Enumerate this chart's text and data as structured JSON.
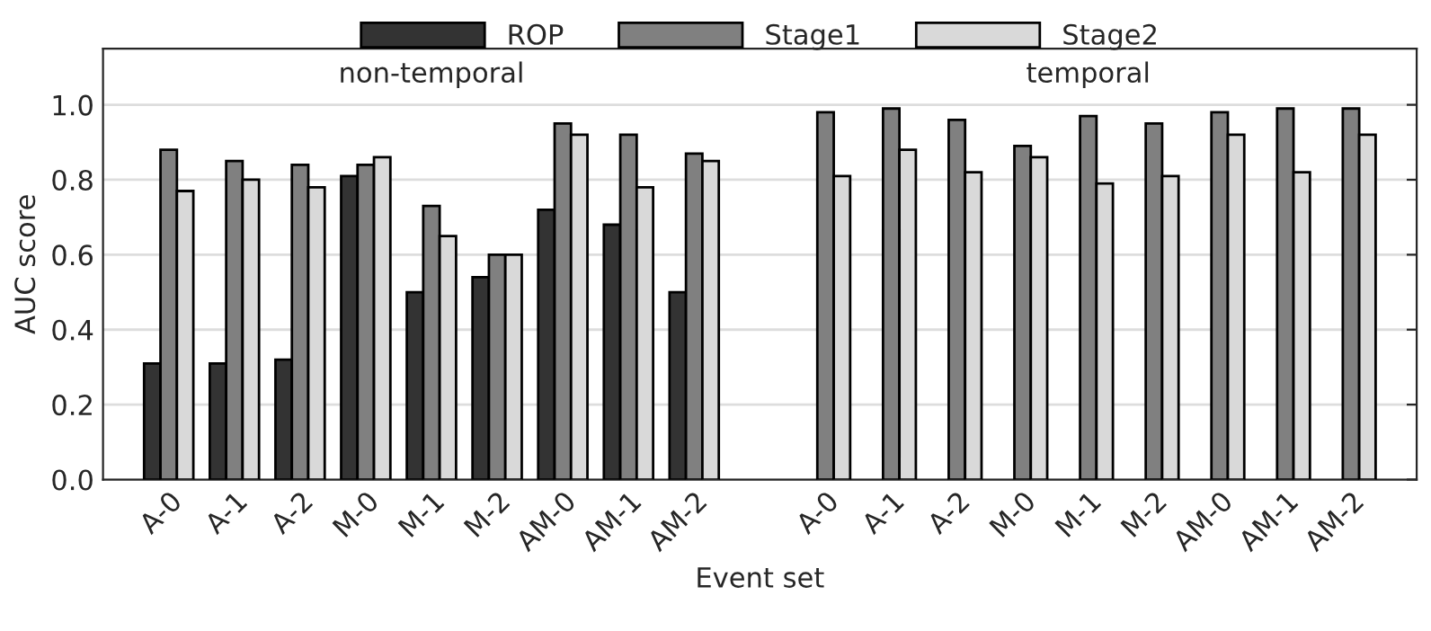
{
  "chart_data": {
    "type": "bar",
    "xlabel": "Event set",
    "ylabel": "AUC score",
    "categories": [
      "A-0",
      "A-1",
      "A-2",
      "M-0",
      "M-1",
      "M-2",
      "AM-0",
      "AM-1",
      "AM-2",
      null,
      "A-0",
      "A-1",
      "A-2",
      "M-0",
      "M-1",
      "M-2",
      "AM-0",
      "AM-1",
      "AM-2"
    ],
    "series": [
      {
        "name": "ROP",
        "color": "#333333",
        "values": [
          0.31,
          0.31,
          0.32,
          0.81,
          0.5,
          0.54,
          0.72,
          0.68,
          0.5,
          null,
          null,
          null,
          null,
          null,
          null,
          null,
          null,
          null,
          null
        ]
      },
      {
        "name": "Stage1",
        "color": "#808080",
        "values": [
          0.88,
          0.85,
          0.84,
          0.84,
          0.73,
          0.6,
          0.95,
          0.92,
          0.87,
          null,
          0.98,
          0.99,
          0.96,
          0.89,
          0.97,
          0.95,
          0.98,
          0.99,
          0.99
        ]
      },
      {
        "name": "Stage2",
        "color": "#d9d9d9",
        "values": [
          0.77,
          0.8,
          0.78,
          0.86,
          0.65,
          0.6,
          0.92,
          0.78,
          0.85,
          null,
          0.81,
          0.88,
          0.82,
          0.86,
          0.79,
          0.81,
          0.92,
          0.82,
          0.92
        ]
      }
    ],
    "annotations": [
      "non-temporal",
      "temporal"
    ],
    "ylim": [
      0,
      1.15
    ],
    "yticks": [
      {
        "value": 0,
        "label": "0.0"
      },
      {
        "value": 0.2,
        "label": "0.2"
      },
      {
        "value": 0.4,
        "label": "0.4"
      },
      {
        "value": 0.6,
        "label": "0.6"
      },
      {
        "value": 0.8,
        "label": "0.8"
      },
      {
        "value": 1.0,
        "label": "1.0"
      }
    ],
    "grid": "y",
    "legend": "top"
  }
}
